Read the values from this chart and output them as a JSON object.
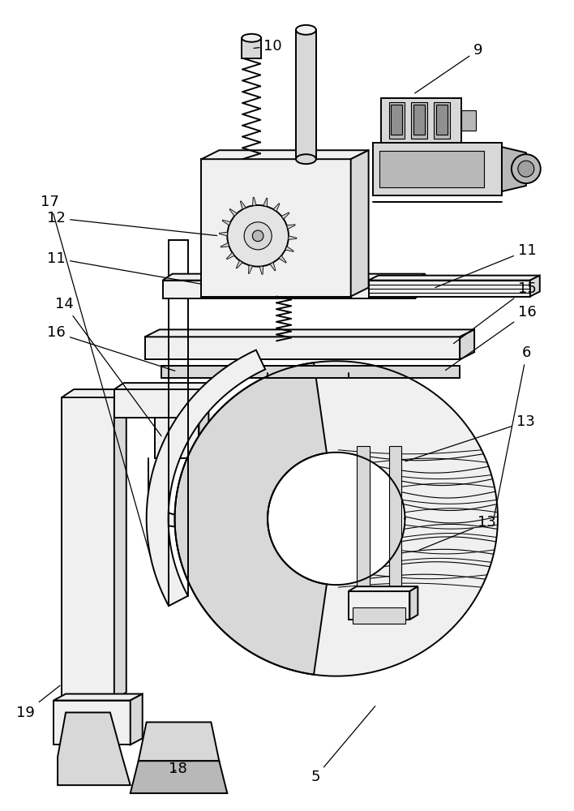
{
  "bg_color": "#ffffff",
  "figsize": [
    7.08,
    10.0
  ],
  "dpi": 100,
  "lw_main": 1.4,
  "lw_thin": 0.8,
  "gray_light": "#f0f0f0",
  "gray_mid": "#d8d8d8",
  "gray_dark": "#b8b8b8",
  "label_fs": 13
}
